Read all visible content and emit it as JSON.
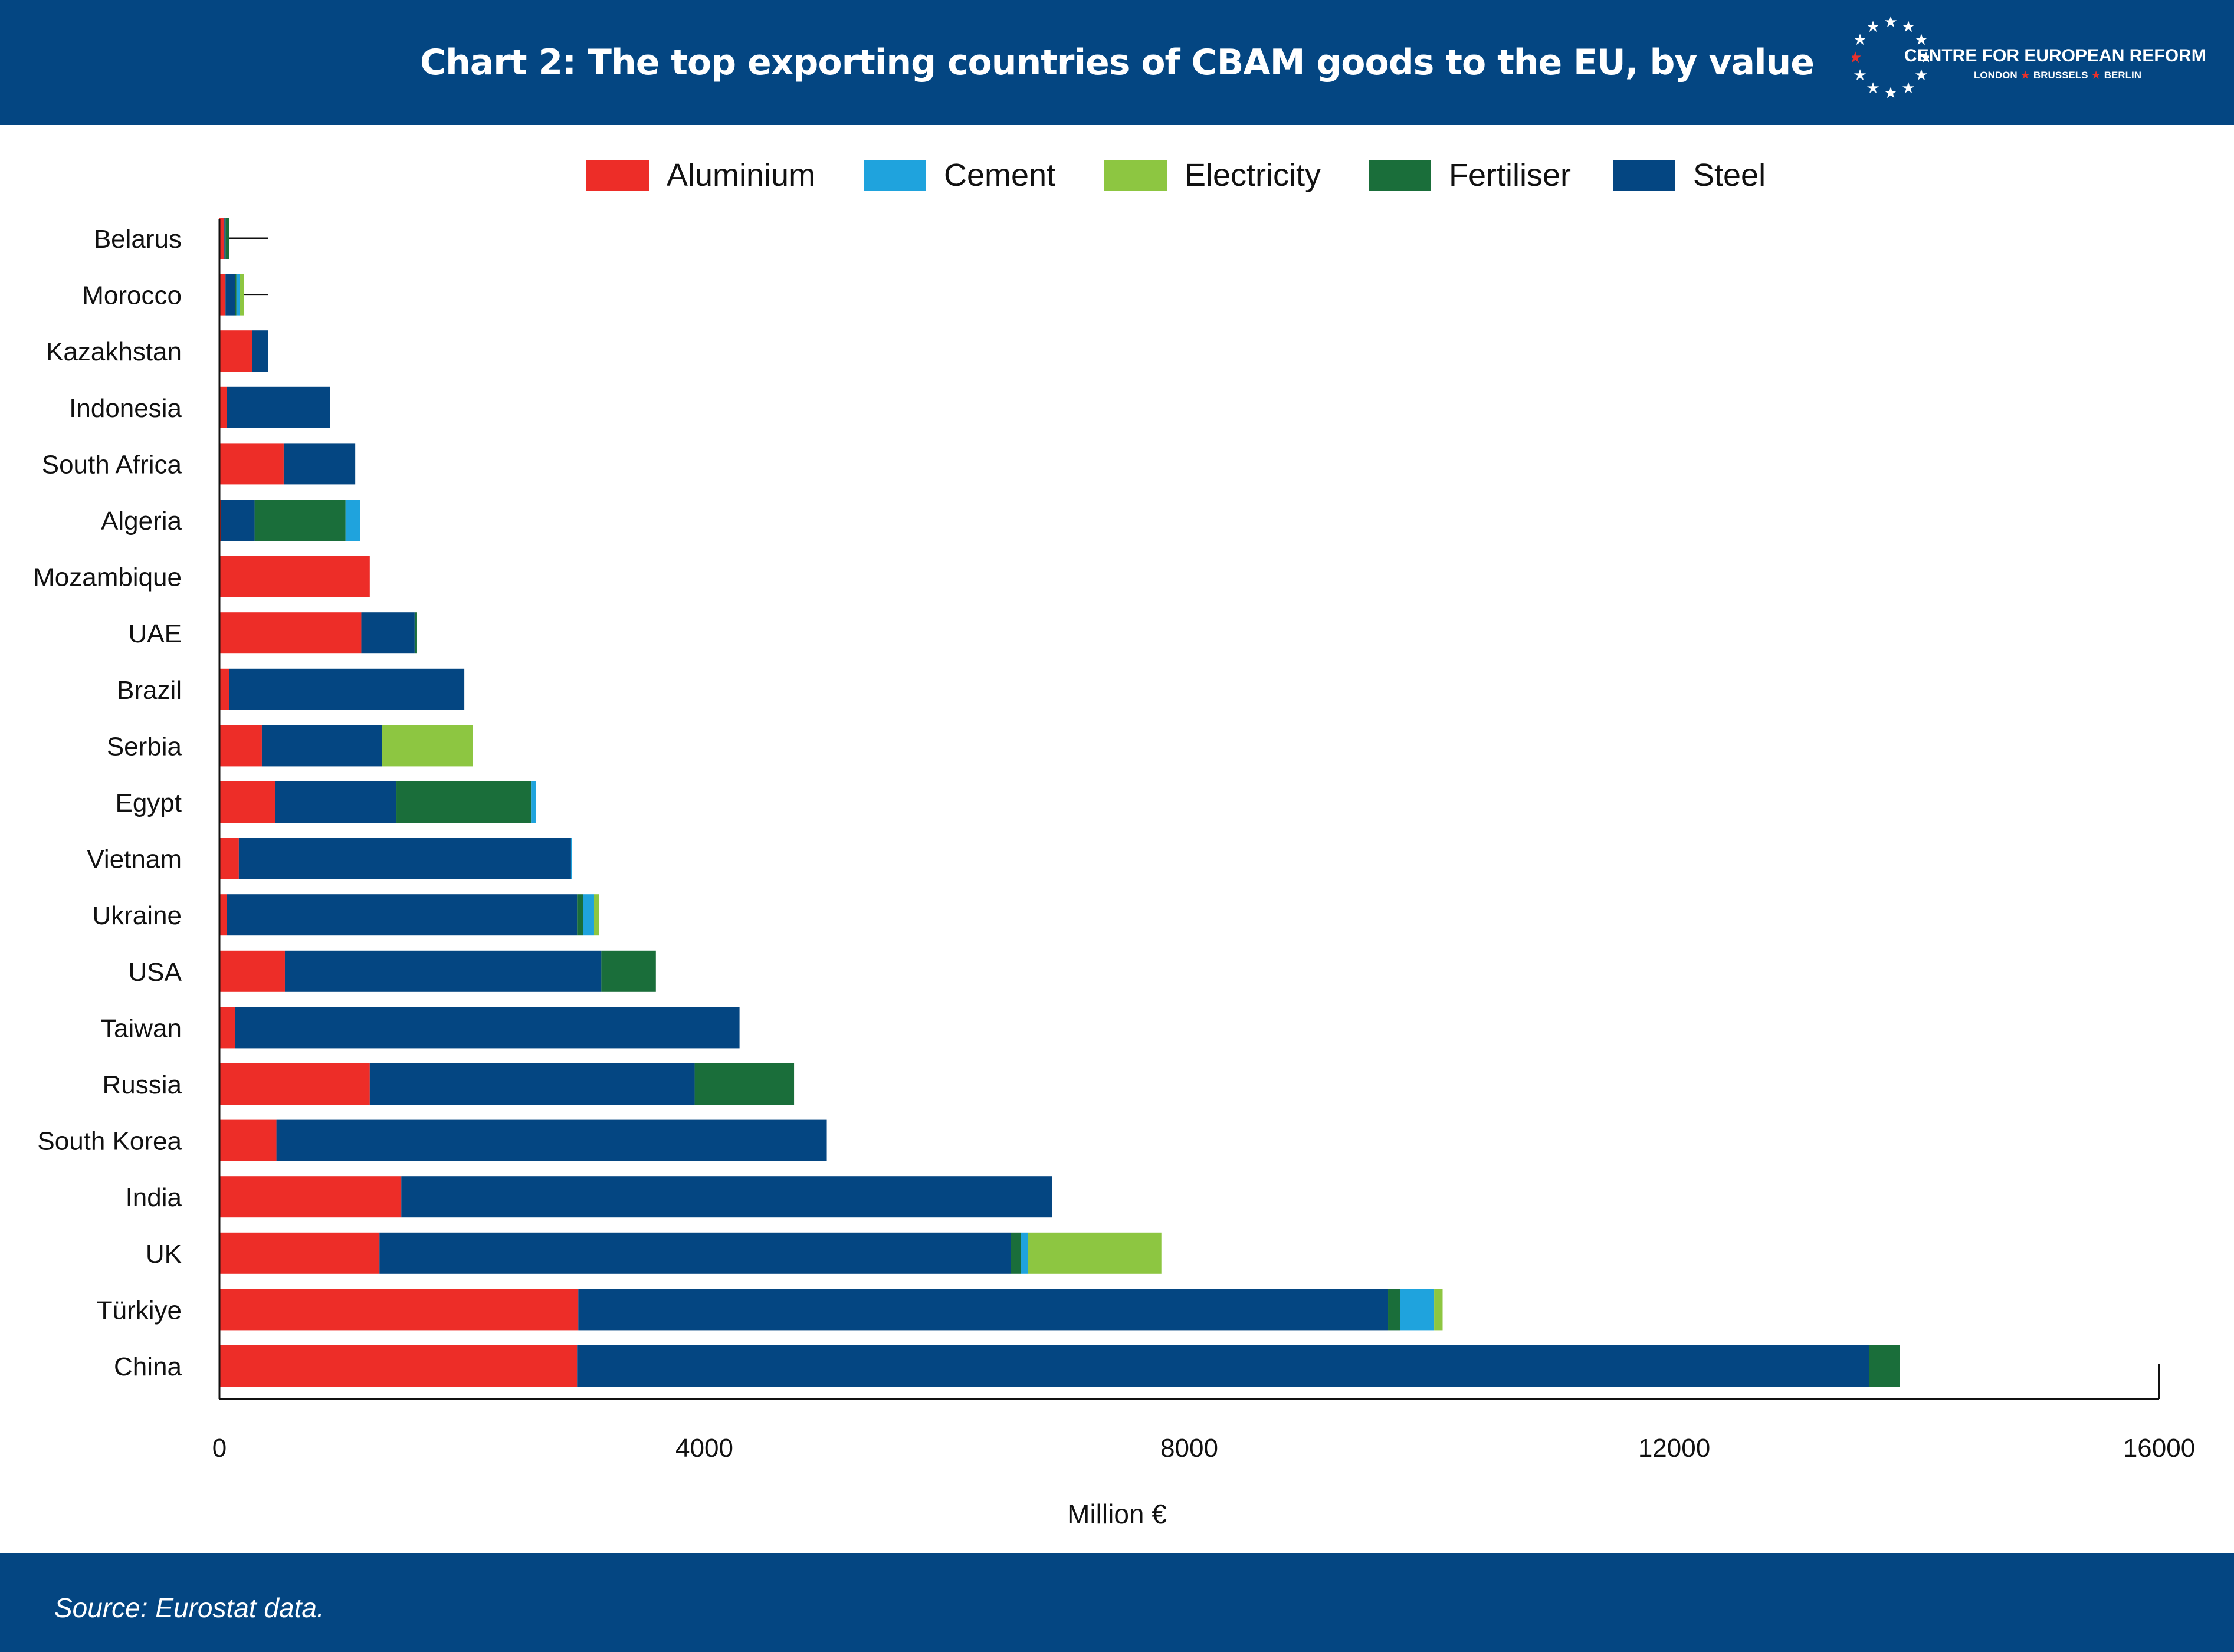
{
  "header": {
    "title": "Chart 2: The top exporting countries of CBAM goods to the EU, by value",
    "logo_name": "CENTRE FOR EUROPEAN REFORM",
    "logo_cities": [
      "LONDON",
      "BRUSSELS",
      "BERLIN"
    ]
  },
  "footer": {
    "source": "Source: Eurostat data."
  },
  "colors": {
    "header_bg": "#044682",
    "Aluminium": "#ed2d28",
    "Cement": "#1fa3dd",
    "Electricity": "#8dc641",
    "Fertiliser": "#1a6e3a",
    "Steel": "#044682"
  },
  "chart_data": {
    "type": "bar",
    "orientation": "horizontal",
    "stacked": true,
    "title": "Chart 2: The top exporting countries of CBAM goods to the EU, by value",
    "xlabel": "Million €",
    "ylabel": "",
    "xlim": [
      0,
      16000
    ],
    "x_ticks": [
      0,
      4000,
      8000,
      12000,
      16000
    ],
    "grid": false,
    "legend_position": "top",
    "stack_order": [
      "Aluminium",
      "Steel",
      "Fertiliser",
      "Cement",
      "Electricity"
    ],
    "legend_order": [
      "Aluminium",
      "Cement",
      "Electricity",
      "Fertiliser",
      "Steel"
    ],
    "categories": [
      "Belarus",
      "Morocco",
      "Kazakhstan",
      "Indonesia",
      "South Africa",
      "Algeria",
      "Mozambique",
      "UAE",
      "Brazil",
      "Serbia",
      "Egypt",
      "Vietnam",
      "Ukraine",
      "USA",
      "Taiwan",
      "Russia",
      "South Korea",
      "India",
      "UK",
      "Türkiye",
      "China"
    ],
    "series": [
      {
        "name": "Aluminium",
        "values": [
          40,
          50,
          270,
          60,
          530,
          10,
          1240,
          1170,
          80,
          350,
          460,
          160,
          60,
          540,
          130,
          1240,
          470,
          1500,
          1320,
          2960,
          2950
        ]
      },
      {
        "name": "Steel",
        "values": [
          10,
          80,
          130,
          850,
          590,
          280,
          0,
          440,
          1940,
          990,
          1000,
          2740,
          2890,
          2610,
          4160,
          2680,
          4540,
          5370,
          5210,
          6680,
          10660
        ]
      },
      {
        "name": "Fertiliser",
        "values": [
          30,
          10,
          0,
          0,
          0,
          750,
          0,
          20,
          0,
          0,
          1110,
          0,
          50,
          450,
          0,
          820,
          0,
          0,
          80,
          100,
          250
        ]
      },
      {
        "name": "Cement",
        "values": [
          0,
          30,
          0,
          0,
          0,
          120,
          0,
          0,
          0,
          0,
          40,
          10,
          90,
          0,
          0,
          0,
          0,
          0,
          60,
          280,
          0
        ]
      },
      {
        "name": "Electricity",
        "values": [
          0,
          30,
          0,
          0,
          0,
          0,
          0,
          0,
          0,
          750,
          0,
          0,
          40,
          0,
          0,
          0,
          0,
          0,
          1100,
          70,
          0
        ]
      }
    ],
    "error_bars": [
      {
        "category": "Belarus",
        "to": 400
      },
      {
        "category": "Morocco",
        "to": 400
      }
    ]
  }
}
